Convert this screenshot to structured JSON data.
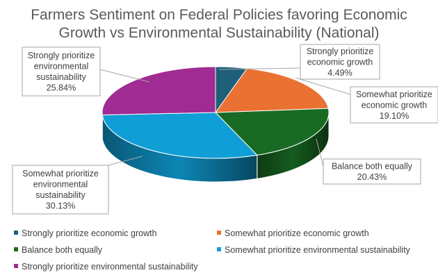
{
  "chart_data": {
    "type": "pie",
    "title": "Farmers Sentiment on Federal Policies favoring Economic Growth vs Environmental Sustainability (National)",
    "title_lines": [
      "Farmers Sentiment on Federal Policies favoring Economic",
      "Growth vs Environmental Sustainability (National)"
    ],
    "legend_position": "bottom",
    "style": "3d",
    "slices": [
      {
        "name": "Strongly prioritize economic growth",
        "value": 4.49,
        "value_label": "4.49%",
        "color": "#1f5f7a",
        "label_lines": [
          "Strongly prioritize",
          "economic growth"
        ]
      },
      {
        "name": "Somewhat prioritize economic growth",
        "value": 19.1,
        "value_label": "19.10%",
        "color": "#e97132",
        "label_lines": [
          "Somewhat prioritize",
          "economic growth"
        ]
      },
      {
        "name": "Balance both equally",
        "value": 20.43,
        "value_label": "20.43%",
        "color": "#196b24",
        "label_lines": [
          "Balance both equally"
        ]
      },
      {
        "name": "Somewhat prioritize environmental sustainability",
        "value": 30.13,
        "value_label": "30.13%",
        "color": "#0f9ed5",
        "label_lines": [
          "Somewhat prioritize",
          "environmental",
          "sustainability"
        ]
      },
      {
        "name": "Strongly prioritize environmental sustainability",
        "value": 25.84,
        "value_label": "25.84%",
        "color": "#a02b93",
        "label_lines": [
          "Strongly prioritize",
          "environmental",
          "sustainability"
        ]
      }
    ]
  }
}
